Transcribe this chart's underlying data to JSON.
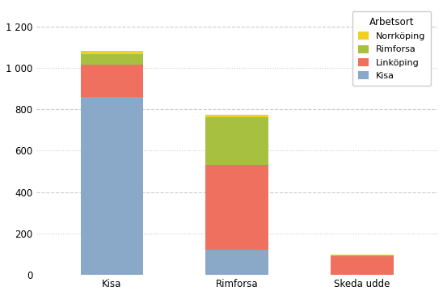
{
  "categories": [
    "Kisa",
    "Rimforsa",
    "Skeda udde"
  ],
  "series": [
    {
      "label": "Kisa",
      "color": "#8aa8c8",
      "values": [
        860,
        120,
        0
      ]
    },
    {
      "label": "Linköping",
      "color": "#f07060",
      "values": [
        155,
        410,
        90
      ]
    },
    {
      "label": "Rimforsa",
      "color": "#a8c040",
      "values": [
        50,
        230,
        5
      ]
    },
    {
      "label": "Norrköping",
      "color": "#f0d020",
      "values": [
        15,
        15,
        5
      ]
    }
  ],
  "ylim": [
    0,
    1300
  ],
  "yticks": [
    0,
    200,
    400,
    600,
    800,
    1000,
    1200
  ],
  "ytick_labels": [
    "0",
    "200",
    "400",
    "600",
    "800",
    "1 000",
    "1 200"
  ],
  "legend_title": "Arbetsort",
  "legend_order": [
    "Norrköping",
    "Rimforsa",
    "Linköping",
    "Kisa"
  ],
  "background_color": "#ffffff",
  "bar_width": 0.5
}
